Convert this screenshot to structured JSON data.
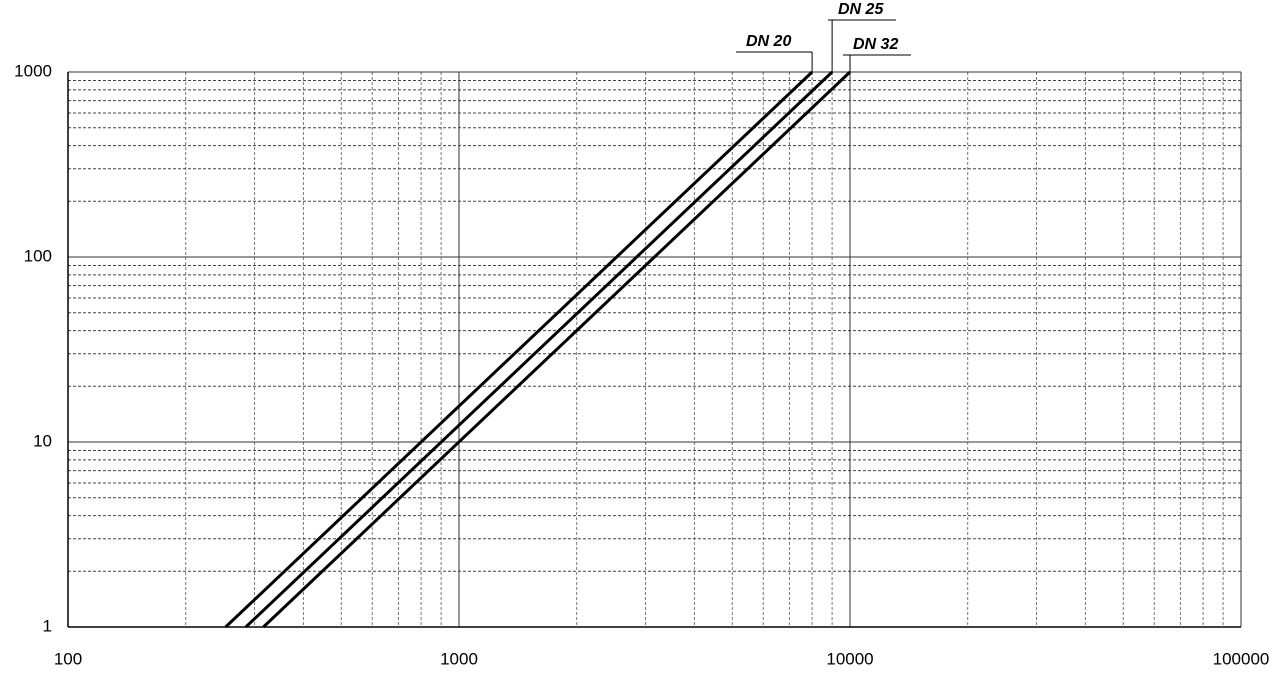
{
  "chart_data": {
    "type": "line",
    "series": [
      {
        "name": "DN 20",
        "color": "#000000",
        "x": [
          253,
          8000
        ],
        "values": [
          1,
          1000
        ]
      },
      {
        "name": "DN 25",
        "color": "#000000",
        "x": [
          285,
          9000
        ],
        "values": [
          1,
          1000
        ]
      },
      {
        "name": "DN 32",
        "color": "#000000",
        "x": [
          316,
          10000
        ],
        "values": [
          1,
          1000
        ]
      }
    ],
    "xlim": [
      100,
      100000
    ],
    "ylim": [
      1,
      1000
    ],
    "xticks": [
      100,
      1000,
      10000,
      100000
    ],
    "yticks": [
      1,
      10,
      100,
      1000
    ],
    "xscale": "log",
    "yscale": "log",
    "grid": true,
    "minor_grid": true
  }
}
